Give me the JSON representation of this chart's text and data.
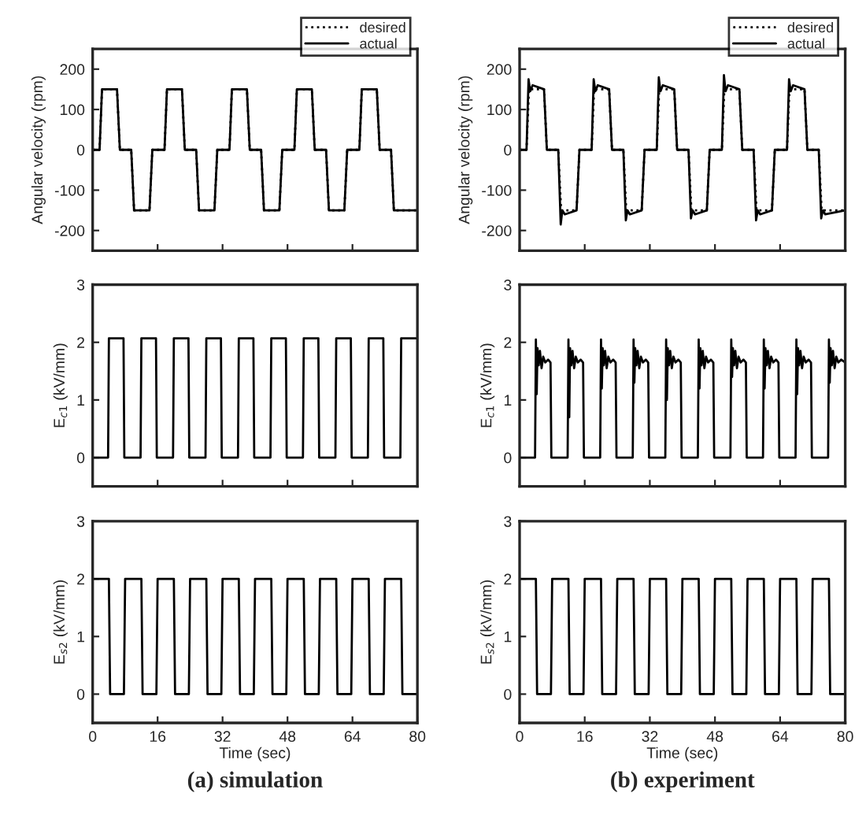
{
  "chart_data": [
    {
      "type": "line",
      "ylabel": "Angular velocity (rpm)",
      "xlim": [
        0,
        80
      ],
      "xticks": [
        0,
        16,
        32,
        48,
        64,
        80
      ],
      "ylim": [
        -250,
        250
      ],
      "yticks": [
        -200,
        -100,
        0,
        100,
        200
      ],
      "tick_labels": "y",
      "legend": "top right",
      "series": [
        {
          "name": "desired",
          "color": "#000000",
          "line_style": "dotted",
          "x": [
            0,
            1.7,
            2.3,
            6,
            6.7,
            9.5,
            10.2,
            14,
            14.7,
            16,
            17.7,
            18.3,
            22,
            22.7,
            25.5,
            26.2,
            30,
            30.7,
            32,
            33.7,
            34.3,
            38,
            38.7,
            41.5,
            42.2,
            46,
            46.7,
            48,
            49.7,
            50.3,
            54,
            54.7,
            57.5,
            58.2,
            62,
            62.7,
            64,
            65.7,
            66.3,
            70,
            70.7,
            73.5,
            74.2,
            80
          ],
          "values": [
            0,
            0,
            150,
            150,
            0,
            0,
            -150,
            -150,
            0,
            0,
            0,
            150,
            150,
            0,
            0,
            -150,
            -150,
            0,
            0,
            0,
            150,
            150,
            0,
            0,
            -150,
            -150,
            0,
            0,
            0,
            150,
            150,
            0,
            0,
            -150,
            -150,
            0,
            0,
            0,
            150,
            150,
            0,
            0,
            -150,
            -150
          ]
        },
        {
          "name": "actual",
          "color": "#000000",
          "line_style": "solid",
          "x": [
            0,
            1.7,
            2.3,
            6,
            6.7,
            9.5,
            10.2,
            14,
            14.7,
            16,
            17.7,
            18.3,
            22,
            22.7,
            25.5,
            26.2,
            30,
            30.7,
            32,
            33.7,
            34.3,
            38,
            38.7,
            41.5,
            42.2,
            46,
            46.7,
            48,
            49.7,
            50.3,
            54,
            54.7,
            57.5,
            58.2,
            62,
            62.7,
            64,
            65.7,
            66.3,
            70,
            70.7,
            73.5,
            74.2,
            80
          ],
          "values": [
            0,
            0,
            150,
            150,
            0,
            0,
            -150,
            -150,
            0,
            0,
            0,
            150,
            150,
            0,
            0,
            -150,
            -150,
            0,
            0,
            0,
            150,
            150,
            0,
            0,
            -150,
            -150,
            0,
            0,
            0,
            150,
            150,
            0,
            0,
            -150,
            -150,
            0,
            0,
            0,
            150,
            150,
            0,
            0,
            -150,
            -150
          ]
        }
      ]
    },
    {
      "type": "line",
      "ylabel": "E$_{c1}$ (kV/mm)",
      "xlim": [
        0,
        80
      ],
      "xticks": [
        0,
        16,
        32,
        48,
        64,
        80
      ],
      "ylim": [
        -0.5,
        3
      ],
      "yticks": [
        0,
        1,
        2,
        3
      ],
      "tick_labels": "y",
      "series": [
        {
          "color": "#000000",
          "line_style": "solid",
          "x": [
            0,
            3.8,
            4,
            7.6,
            7.8,
            8,
            11.8,
            12,
            15.6,
            15.8,
            16,
            19.8,
            20,
            23.6,
            23.8,
            24,
            27.8,
            28,
            31.6,
            31.8,
            32,
            35.8,
            36,
            39.6,
            39.8,
            40,
            43.8,
            44,
            47.6,
            47.8,
            48,
            51.8,
            52,
            55.6,
            55.8,
            56,
            59.8,
            60,
            63.6,
            63.8,
            64,
            67.8,
            68,
            71.6,
            71.8,
            72,
            75.8,
            76,
            80
          ],
          "values": [
            0,
            0,
            2.07,
            2.07,
            0,
            0,
            0,
            2.07,
            2.07,
            0,
            0,
            0,
            2.07,
            2.07,
            0,
            0,
            0,
            2.07,
            2.07,
            0,
            0,
            0,
            2.07,
            2.07,
            0,
            0,
            0,
            2.07,
            2.07,
            0,
            0,
            0,
            2.07,
            2.07,
            0,
            0,
            0,
            2.07,
            2.07,
            0,
            0,
            0,
            2.07,
            2.07,
            0,
            0,
            0,
            2.07,
            2.07
          ]
        }
      ]
    },
    {
      "type": "line",
      "ylabel": "E$_{s2}$ (kV/mm)",
      "xlabel": "Time (sec)",
      "xlim": [
        0,
        80
      ],
      "xticks": [
        0,
        16,
        32,
        48,
        64,
        80
      ],
      "ylim": [
        -0.5,
        3
      ],
      "yticks": [
        0,
        1,
        2,
        3
      ],
      "annotations": [
        "(a) simulation"
      ],
      "series": [
        {
          "color": "#000000",
          "line_style": "solid",
          "x": [
            0,
            4,
            4.3,
            7.7,
            8,
            12,
            12.3,
            15.7,
            16,
            20,
            20.3,
            23.7,
            24,
            28,
            28.3,
            31.7,
            32,
            36,
            36.3,
            39.7,
            40,
            44,
            44.3,
            47.7,
            48,
            52,
            52.3,
            55.7,
            56,
            60,
            60.3,
            63.7,
            64,
            68,
            68.3,
            71.7,
            72,
            76,
            76.3,
            80
          ],
          "values": [
            2,
            2,
            0,
            0,
            2,
            2,
            0,
            0,
            2,
            2,
            0,
            0,
            2,
            2,
            0,
            0,
            2,
            2,
            0,
            0,
            2,
            2,
            0,
            0,
            2,
            2,
            0,
            0,
            2,
            2,
            0,
            0,
            2,
            2,
            0,
            0,
            2,
            2,
            0,
            0
          ]
        }
      ]
    },
    {
      "type": "line",
      "ylabel": "Angular velocity (rpm)",
      "xlim": [
        0,
        80
      ],
      "xticks": [
        0,
        16,
        32,
        48,
        64,
        80
      ],
      "ylim": [
        -250,
        250
      ],
      "yticks": [
        -200,
        -100,
        0,
        100,
        200
      ],
      "tick_labels": "y",
      "legend": "top right",
      "series": [
        {
          "name": "desired",
          "color": "#000000",
          "line_style": "dotted",
          "x": [
            0,
            1.7,
            2.3,
            6,
            6.7,
            9.5,
            10.2,
            14,
            14.7,
            16,
            17.7,
            18.3,
            22,
            22.7,
            25.5,
            26.2,
            30,
            30.7,
            32,
            33.7,
            34.3,
            38,
            38.7,
            41.5,
            42.2,
            46,
            46.7,
            48,
            49.7,
            50.3,
            54,
            54.7,
            57.5,
            58.2,
            62,
            62.7,
            64,
            65.7,
            66.3,
            70,
            70.7,
            73.5,
            74.2,
            80
          ],
          "values": [
            0,
            0,
            150,
            150,
            0,
            0,
            -150,
            -150,
            0,
            0,
            0,
            150,
            150,
            0,
            0,
            -150,
            -150,
            0,
            0,
            0,
            150,
            150,
            0,
            0,
            -150,
            -150,
            0,
            0,
            0,
            150,
            150,
            0,
            0,
            -150,
            -150,
            0,
            0,
            0,
            150,
            150,
            0,
            0,
            -150,
            -150
          ]
        },
        {
          "name": "actual",
          "color": "#000000",
          "line_style": "solid",
          "x": [
            0,
            1.7,
            2.2,
            2.6,
            3.2,
            6,
            6.7,
            9.5,
            10.1,
            10.5,
            11.1,
            14,
            14.7,
            16,
            17.7,
            18.2,
            18.6,
            19.2,
            22,
            22.7,
            25.5,
            26.1,
            26.5,
            27.1,
            30,
            30.7,
            32,
            33.7,
            34.2,
            34.6,
            35.2,
            38,
            38.7,
            41.5,
            42.1,
            42.5,
            43.1,
            46,
            46.7,
            48,
            49.7,
            50.2,
            50.6,
            51.2,
            54,
            54.7,
            57.5,
            58.1,
            58.5,
            59.1,
            62,
            62.7,
            64,
            65.7,
            66.2,
            66.6,
            67.2,
            70,
            70.7,
            73.5,
            74.1,
            74.5,
            75.1,
            80
          ],
          "values": [
            0,
            0,
            175,
            145,
            160,
            150,
            0,
            0,
            -185,
            -150,
            -160,
            -150,
            0,
            0,
            0,
            175,
            145,
            160,
            150,
            0,
            0,
            -175,
            -150,
            -160,
            -150,
            0,
            0,
            0,
            180,
            145,
            160,
            150,
            0,
            0,
            -170,
            -150,
            -160,
            -150,
            0,
            0,
            0,
            185,
            145,
            160,
            150,
            0,
            0,
            -175,
            -150,
            -160,
            -150,
            0,
            0,
            0,
            175,
            145,
            160,
            150,
            0,
            0,
            -170,
            -150,
            -160,
            -150
          ]
        }
      ]
    },
    {
      "type": "line",
      "ylabel": "E$_{c1}$ (kV/mm)",
      "xlim": [
        0,
        80
      ],
      "xticks": [
        0,
        16,
        32,
        48,
        64,
        80
      ],
      "ylim": [
        -0.5,
        3
      ],
      "yticks": [
        0,
        1,
        2,
        3
      ],
      "tick_labels": "y",
      "series": [
        {
          "color": "#000000",
          "line_style": "solid",
          "x": [
            0,
            3.8,
            4,
            4.2,
            4.4,
            4.7,
            5,
            5.4,
            5.8,
            6.3,
            7,
            7.6,
            7.8,
            8,
            11.8,
            12,
            12.2,
            12.4,
            12.7,
            13,
            13.4,
            13.8,
            14.3,
            15,
            15.6,
            15.8,
            16,
            19.8,
            20,
            20.2,
            20.4,
            20.7,
            21,
            21.4,
            21.8,
            22.3,
            23,
            23.6,
            23.8,
            24,
            27.8,
            28,
            28.2,
            28.4,
            28.7,
            29,
            29.4,
            29.8,
            30.3,
            31,
            31.6,
            31.8,
            32,
            35.8,
            36,
            36.2,
            36.4,
            36.7,
            37,
            37.4,
            37.8,
            38.3,
            39,
            39.6,
            39.8,
            40,
            43.8,
            44,
            44.2,
            44.4,
            44.7,
            45,
            45.4,
            45.8,
            46.3,
            47,
            47.6,
            47.8,
            48,
            51.8,
            52,
            52.2,
            52.4,
            52.7,
            53,
            53.4,
            53.8,
            54.3,
            55,
            55.6,
            55.8,
            56,
            59.8,
            60,
            60.2,
            60.4,
            60.7,
            61,
            61.4,
            61.8,
            62.3,
            63,
            63.6,
            63.8,
            64,
            67.8,
            68,
            68.2,
            68.4,
            68.7,
            69,
            69.4,
            69.8,
            70.3,
            71,
            71.6,
            71.8,
            72,
            75.8,
            76,
            76.2,
            76.4,
            76.7,
            77,
            77.4,
            77.8,
            78.3,
            79,
            80
          ],
          "values": [
            0,
            0,
            2.05,
            1.1,
            1.9,
            1.6,
            1.85,
            1.55,
            1.75,
            1.65,
            1.7,
            1.65,
            0,
            0,
            0,
            2.05,
            0.7,
            1.9,
            1.6,
            1.85,
            1.55,
            1.75,
            1.65,
            1.7,
            1.65,
            0,
            0,
            0,
            2.05,
            1.2,
            1.9,
            1.6,
            1.85,
            1.55,
            1.75,
            1.65,
            1.7,
            1.65,
            0,
            0,
            0,
            2.05,
            1.3,
            1.9,
            1.6,
            1.85,
            1.55,
            1.75,
            1.65,
            1.7,
            1.65,
            0,
            0,
            0,
            2.05,
            1.0,
            1.9,
            1.6,
            1.85,
            1.55,
            1.75,
            1.65,
            1.7,
            1.65,
            0,
            0,
            0,
            2.05,
            1.2,
            1.9,
            1.6,
            1.85,
            1.55,
            1.75,
            1.65,
            1.7,
            1.65,
            0,
            0,
            0,
            2.05,
            1.4,
            1.9,
            1.6,
            1.85,
            1.55,
            1.75,
            1.65,
            1.7,
            1.65,
            0,
            0,
            0,
            2.05,
            1.2,
            1.9,
            1.6,
            1.85,
            1.55,
            1.75,
            1.65,
            1.7,
            1.65,
            0,
            0,
            0,
            2.05,
            1.1,
            1.9,
            1.6,
            1.85,
            1.55,
            1.75,
            1.65,
            1.7,
            1.65,
            0,
            0,
            0,
            2.05,
            1.3,
            1.9,
            1.6,
            1.85,
            1.55,
            1.75,
            1.65,
            1.7,
            1.65
          ]
        }
      ]
    },
    {
      "type": "line",
      "ylabel": "E$_{s2}$ (kV/mm)",
      "xlabel": "Time (sec)",
      "xlim": [
        0,
        80
      ],
      "xticks": [
        0,
        16,
        32,
        48,
        64,
        80
      ],
      "ylim": [
        -0.5,
        3
      ],
      "yticks": [
        0,
        1,
        2,
        3
      ],
      "annotations": [
        "(b) experiment"
      ],
      "series": [
        {
          "color": "#000000",
          "line_style": "solid",
          "x": [
            0,
            4,
            4.3,
            7.7,
            8,
            12,
            12.3,
            15.7,
            16,
            20,
            20.3,
            23.7,
            24,
            28,
            28.3,
            31.7,
            32,
            36,
            36.3,
            39.7,
            40,
            44,
            44.3,
            47.7,
            48,
            52,
            52.3,
            55.7,
            56,
            60,
            60.3,
            63.7,
            64,
            68,
            68.3,
            71.7,
            72,
            76,
            76.3,
            80
          ],
          "values": [
            2,
            2,
            0,
            0,
            2,
            2,
            0,
            0,
            2,
            2,
            0,
            0,
            2,
            2,
            0,
            0,
            2,
            2,
            0,
            0,
            2,
            2,
            0,
            0,
            2,
            2,
            0,
            0,
            2,
            2,
            0,
            0,
            2,
            2,
            0,
            0,
            2,
            2,
            0,
            0
          ]
        }
      ]
    }
  ]
}
